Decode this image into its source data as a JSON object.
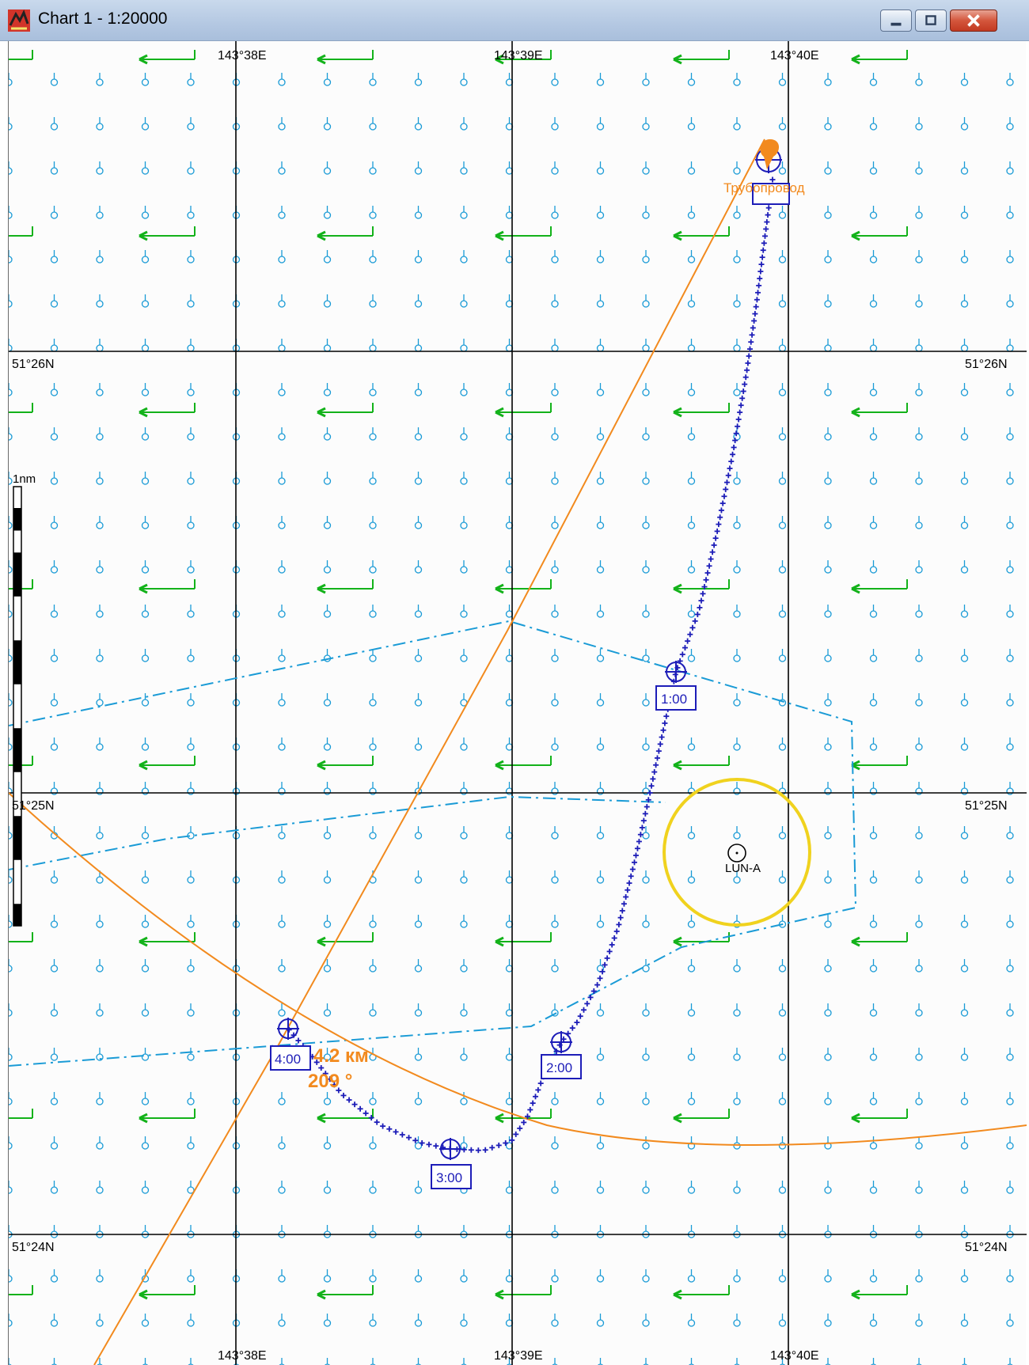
{
  "window": {
    "title": "Chart 1 - 1:20000",
    "icon": "chart-app-icon",
    "controls": [
      "minimize-icon",
      "maximize-icon",
      "close-icon"
    ]
  },
  "chart": {
    "scale_label": "1nm",
    "longitude_labels_top": [
      "143°38E",
      "143°39E",
      "143°40E"
    ],
    "longitude_labels_bottom": [
      "143°38E",
      "143°39E",
      "143°40E"
    ],
    "latitude_labels_left": [
      "51°26N",
      "51°25N",
      "51°24N"
    ],
    "latitude_labels_right": [
      "51°26N",
      "51°25N",
      "51°24N"
    ]
  },
  "features": {
    "pipeline_label": "Трубопровод",
    "platform_label": "LUN-A",
    "measurement": {
      "distance": "4.2 км",
      "bearing": "209 °"
    },
    "time_marks": [
      "1:00",
      "2:00",
      "3:00",
      "4:00"
    ]
  },
  "colors": {
    "grid": "#000000",
    "current_symbol": "#1a9bd6",
    "wind_arrow": "#13b21a",
    "pipeline": "#f28a1e",
    "track": "#1d1db8",
    "zone_boundary": "#1a9bd6",
    "safety_circle": "#f0d21e"
  }
}
